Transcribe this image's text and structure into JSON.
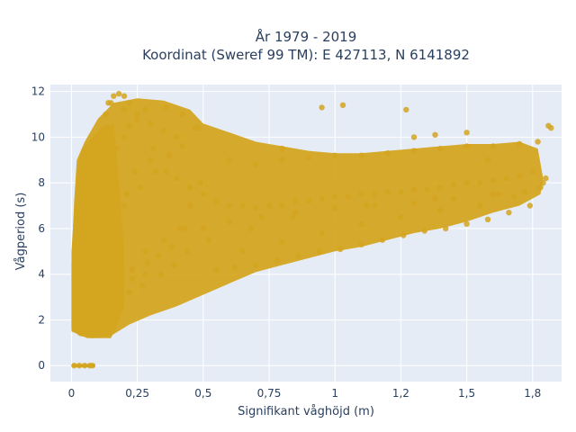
{
  "chart_data": {
    "type": "scatter",
    "title_lines": [
      "År 1979 - 2019",
      "Koordinat (Sweref 99 TM): E 427113, N 6141892"
    ],
    "xlabel": "Signifikant våghöjd (m)",
    "ylabel": "Vågperiod (s)",
    "xlim": [
      -0.08,
      1.86
    ],
    "ylim": [
      -0.7,
      12.3
    ],
    "x_ticks": [
      0,
      0.25,
      0.5,
      0.75,
      1,
      1.25,
      1.5,
      1.75
    ],
    "x_tick_labels": [
      "0",
      "0,25",
      "0,5",
      "0,75",
      "1",
      "1,2",
      "1,5",
      "1,8"
    ],
    "y_ticks": [
      0,
      2,
      4,
      6,
      8,
      10,
      12
    ],
    "y_tick_labels": [
      "0",
      "2",
      "4",
      "6",
      "8",
      "10",
      "12"
    ],
    "grid": true,
    "legend": "none",
    "colors": {
      "marker": "#d4a520",
      "plot_bg": "#e5ecf6",
      "grid": "#ffffff",
      "text": "#2a3f5f"
    },
    "series": [
      {
        "x": [
          0.01,
          0.03,
          0.05,
          0.07,
          0.08,
          0.02,
          0.04,
          0.06,
          0.09,
          0.03,
          0.05,
          0.07,
          0.04,
          0.06,
          0.08,
          0.1,
          0.12,
          0.14,
          0.16,
          0.05,
          0.07,
          0.09,
          0.11,
          0.13,
          0.15,
          0.06,
          0.08,
          0.1,
          0.12,
          0.17,
          0.2,
          0.22,
          0.25,
          0.07,
          0.09,
          0.13,
          0.18,
          0.21,
          0.24,
          0.08,
          0.1,
          0.14,
          0.19,
          0.23,
          0.28,
          0.31,
          0.15,
          0.2,
          0.25,
          0.3,
          0.35,
          0.4,
          0.18,
          0.22,
          0.28,
          0.33,
          0.38,
          0.43,
          0.2,
          0.26,
          0.32,
          0.37,
          0.42,
          0.47,
          0.23,
          0.29,
          0.35,
          0.41,
          0.45,
          0.49,
          0.27,
          0.34,
          0.39,
          0.44,
          0.3,
          0.36,
          0.4,
          0.45,
          0.5,
          0.55,
          0.6,
          0.65,
          0.7,
          0.75,
          0.8,
          0.85,
          0.9,
          0.95,
          1.0,
          1.05,
          1.1,
          1.15,
          1.2,
          1.25,
          1.3,
          1.35,
          1.4,
          1.45,
          1.5,
          1.55,
          1.6,
          1.65,
          1.7,
          1.75,
          0.55,
          0.62,
          0.7,
          0.78,
          0.86,
          0.94,
          1.02,
          1.1,
          1.18,
          1.26,
          1.34,
          1.42,
          1.5,
          1.58,
          1.66,
          1.74,
          0.6,
          0.7,
          0.8,
          0.9,
          1.0,
          1.1,
          1.2,
          1.3,
          1.4,
          1.5,
          1.6,
          1.7,
          0.65,
          0.8,
          0.95,
          1.1,
          1.25,
          1.4,
          1.55,
          1.68,
          1.78,
          0.5,
          0.6,
          0.72,
          0.85,
          1.0,
          1.15,
          1.3,
          1.45,
          1.6,
          1.72,
          0.52,
          0.68,
          0.84,
          1.12,
          1.38,
          1.62,
          1.8,
          1.82,
          1.81,
          1.79,
          1.77,
          1.58,
          1.5,
          1.38,
          1.3,
          1.27,
          1.03,
          0.95,
          0.8,
          0.48,
          0.42,
          0.36,
          0.28,
          0.22,
          0.2,
          0.11,
          0.12,
          0.13,
          0.14,
          0.16,
          0.18,
          0.04,
          0.03,
          0.02
        ],
        "y": [
          0,
          0,
          0,
          0,
          0,
          1.6,
          1.8,
          2.0,
          2.2,
          3.0,
          3.5,
          4.0,
          5.0,
          5.8,
          6.5,
          7.0,
          7.5,
          8.0,
          8.6,
          2.5,
          3.0,
          1.5,
          1.4,
          1.6,
          2.0,
          6.0,
          7.2,
          8.4,
          9.0,
          9.5,
          10.0,
          10.5,
          11.0,
          4.5,
          5.5,
          6.0,
          6.5,
          7.5,
          8.5,
          1.8,
          2.4,
          3.0,
          3.6,
          4.2,
          5.0,
          9.5,
          11.5,
          11.2,
          10.8,
          10.6,
          10.3,
          10.0,
          2.8,
          3.2,
          4.0,
          4.8,
          5.2,
          6.0,
          7.0,
          7.8,
          8.5,
          9.2,
          9.6,
          10.4,
          3.8,
          4.5,
          5.5,
          6.0,
          7.0,
          8.0,
          3.5,
          4.0,
          4.4,
          5.0,
          9.0,
          8.5,
          8.2,
          7.8,
          7.5,
          7.2,
          7.0,
          7.0,
          6.9,
          7.0,
          7.0,
          7.2,
          7.2,
          7.3,
          7.4,
          7.4,
          7.5,
          7.5,
          7.6,
          7.6,
          7.7,
          7.7,
          7.8,
          7.9,
          8.0,
          8.0,
          8.1,
          8.2,
          8.3,
          8.5,
          4.2,
          4.3,
          4.4,
          4.6,
          4.8,
          5.0,
          5.1,
          5.3,
          5.5,
          5.7,
          5.9,
          6.0,
          6.2,
          6.4,
          6.7,
          7.0,
          9.0,
          8.8,
          9.0,
          9.1,
          9.2,
          9.2,
          9.3,
          9.4,
          9.5,
          9.6,
          9.6,
          9.7,
          5.0,
          5.4,
          5.8,
          6.2,
          6.5,
          6.8,
          7.0,
          7.4,
          7.8,
          6.0,
          6.3,
          6.5,
          6.7,
          6.9,
          7.0,
          7.1,
          7.3,
          7.5,
          7.6,
          5.5,
          6.0,
          6.5,
          7.0,
          7.3,
          7.5,
          8.2,
          10.4,
          10.5,
          8.0,
          9.8,
          9.0,
          10.2,
          10.1,
          10.0,
          11.2,
          11.4,
          11.3,
          9.5,
          10.4,
          11.0,
          11.3,
          11.2,
          11.5,
          11.8,
          8.5,
          10.0,
          11.0,
          11.5,
          11.8,
          11.9,
          4.0,
          5.0,
          6.0
        ]
      }
    ]
  }
}
